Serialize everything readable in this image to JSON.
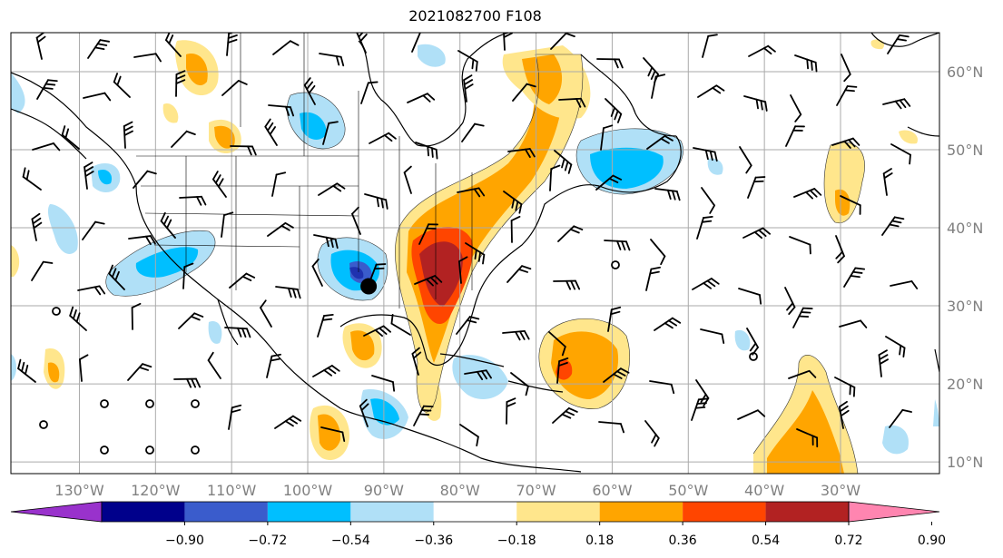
{
  "title": "2021082700 F108",
  "lon_labels": [
    "130°W",
    "120°W",
    "110°W",
    "100°W",
    "90°W",
    "80°W",
    "70°W",
    "60°W",
    "50°W",
    "40°W",
    "30°W"
  ],
  "lat_labels": [
    "60°N",
    "50°N",
    "40°N",
    "30°N",
    "20°N",
    "10°N"
  ],
  "colorbar": {
    "ticks": [
      "−0.90",
      "−0.72",
      "−0.54",
      "−0.36",
      "−0.18",
      "0.18",
      "0.36",
      "0.54",
      "0.72",
      "0.90"
    ],
    "colors": [
      "#9932cc",
      "#00008b",
      "#3a5ccc",
      "#00bfff",
      "#b0e0f7",
      "#ffffff",
      "#ffe68c",
      "#ffa500",
      "#ff4500",
      "#b22222",
      "#ff85b0"
    ]
  },
  "marker": {
    "lon": -92,
    "lat": 32.5
  }
}
